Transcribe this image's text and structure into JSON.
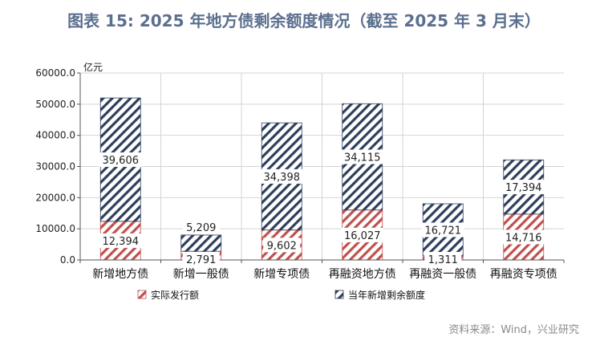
{
  "page_title": "图表 15: 2025 年地方债剩余额度情况（截至 2025 年 3 月末）",
  "source": "资料来源：Wind，兴业研究",
  "chart_data": {
    "type": "bar",
    "stacked": true,
    "title": "图表 15: 2025 年地方债剩余额度情况（截至 2025 年 3 月末）",
    "unit_label": "亿元",
    "categories": [
      "新增地方债",
      "新增一般债",
      "新增专项债",
      "再融资地方债",
      "再融资一般债",
      "再融资专项债"
    ],
    "series": [
      {
        "name": "实际发行额",
        "values": [
          12394,
          2791,
          9602,
          16027,
          1311,
          14716
        ],
        "labels": [
          "12,394",
          "2,791",
          "9,602",
          "16,027",
          "1,311",
          "14,716"
        ],
        "color": "#c0504d"
      },
      {
        "name": "当年新增剩余额度",
        "values": [
          39606,
          5209,
          34398,
          34115,
          16721,
          17394
        ],
        "labels": [
          "39,606",
          "5,209",
          "34,398",
          "34,115",
          "16,721",
          "17,394"
        ],
        "color": "#2e3f5c"
      }
    ],
    "ylim": [
      0,
      60000
    ],
    "yticks": [
      "0.0",
      "10000.0",
      "20000.0",
      "30000.0",
      "40000.0",
      "50000.0",
      "60000.0"
    ],
    "grid": true,
    "legend_position": "bottom"
  }
}
